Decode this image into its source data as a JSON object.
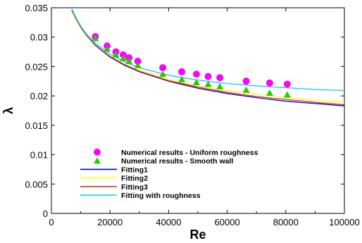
{
  "chart_data": {
    "type": "scatter",
    "xlabel": "Re",
    "ylabel": "λ",
    "xlim": [
      0,
      100000
    ],
    "ylim": [
      0,
      0.035
    ],
    "x_ticks": [
      0,
      20000,
      40000,
      60000,
      80000,
      100000
    ],
    "x_tick_labels": [
      "0",
      "20000",
      "40000",
      "60000",
      "80000",
      "100000"
    ],
    "y_ticks": [
      0,
      0.005,
      0.01,
      0.015,
      0.02,
      0.025,
      0.03,
      0.035
    ],
    "y_tick_labels": [
      "0",
      "0.005",
      "0.01",
      "0.015",
      "0.02",
      "0.025",
      "0.03",
      "0.035"
    ],
    "grid": false,
    "legend_position": "bottom-left",
    "series": [
      {
        "name": "Numerical results - Uniform roughness",
        "kind": "scatter",
        "marker": "circle",
        "color": "#ff00ff",
        "x": [
          15000,
          19000,
          22000,
          24500,
          26500,
          29500,
          38000,
          44500,
          49500,
          53500,
          57500,
          66500,
          74500,
          80500
        ],
        "y": [
          0.0301,
          0.0285,
          0.0275,
          0.027,
          0.0265,
          0.0259,
          0.0248,
          0.0241,
          0.0237,
          0.0233,
          0.0231,
          0.0225,
          0.0222,
          0.022
        ]
      },
      {
        "name": "Numerical results - Smooth wall",
        "kind": "scatter",
        "marker": "triangle",
        "color": "#22cc00",
        "x": [
          15000,
          19000,
          22000,
          24500,
          26500,
          29500,
          38000,
          44500,
          49500,
          53500,
          57500,
          66500,
          74500,
          80500
        ],
        "y": [
          0.0298,
          0.028,
          0.027,
          0.0264,
          0.0259,
          0.0252,
          0.0237,
          0.0228,
          0.0223,
          0.022,
          0.0216,
          0.021,
          0.0205,
          0.0202
        ]
      },
      {
        "name": "Fitting1",
        "kind": "line",
        "color": "#0000cc",
        "x": [
          7000,
          8000,
          10000,
          12000,
          15000,
          20000,
          25000,
          30000,
          40000,
          50000,
          60000,
          70000,
          80000,
          90000,
          100000
        ],
        "y": [
          0.0345,
          0.0334,
          0.0316,
          0.0302,
          0.0286,
          0.0266,
          0.0252,
          0.0241,
          0.0225,
          0.0213,
          0.0204,
          0.0197,
          0.0191,
          0.0187,
          0.0183
        ]
      },
      {
        "name": "Fitting2",
        "kind": "line",
        "color": "#ffff00",
        "x": [
          7000,
          8000,
          10000,
          12000,
          15000,
          20000,
          25000,
          30000,
          40000,
          50000,
          60000,
          70000,
          80000,
          90000,
          100000
        ],
        "y": [
          0.0343,
          0.0333,
          0.0316,
          0.0302,
          0.0287,
          0.0268,
          0.0254,
          0.0244,
          0.0228,
          0.0217,
          0.0209,
          0.0203,
          0.0197,
          0.0193,
          0.0189
        ]
      },
      {
        "name": "Fitting3",
        "kind": "line",
        "color": "#cc3333",
        "x": [
          7000,
          8000,
          10000,
          12000,
          15000,
          20000,
          25000,
          30000,
          40000,
          50000,
          60000,
          70000,
          80000,
          90000,
          100000
        ],
        "y": [
          0.0346,
          0.0335,
          0.0317,
          0.0303,
          0.0287,
          0.0267,
          0.0253,
          0.0242,
          0.0226,
          0.0215,
          0.0206,
          0.0199,
          0.0194,
          0.0189,
          0.0185
        ]
      },
      {
        "name": "Fitting with roughness",
        "kind": "line",
        "color": "#00ccff",
        "x": [
          7000,
          8000,
          10000,
          12000,
          15000,
          20000,
          25000,
          30000,
          40000,
          50000,
          60000,
          70000,
          80000,
          90000,
          100000
        ],
        "y": [
          0.0348,
          0.0337,
          0.0319,
          0.0305,
          0.029,
          0.0271,
          0.0258,
          0.0248,
          0.0235,
          0.0227,
          0.0221,
          0.0217,
          0.0214,
          0.0211,
          0.0209
        ]
      }
    ]
  }
}
